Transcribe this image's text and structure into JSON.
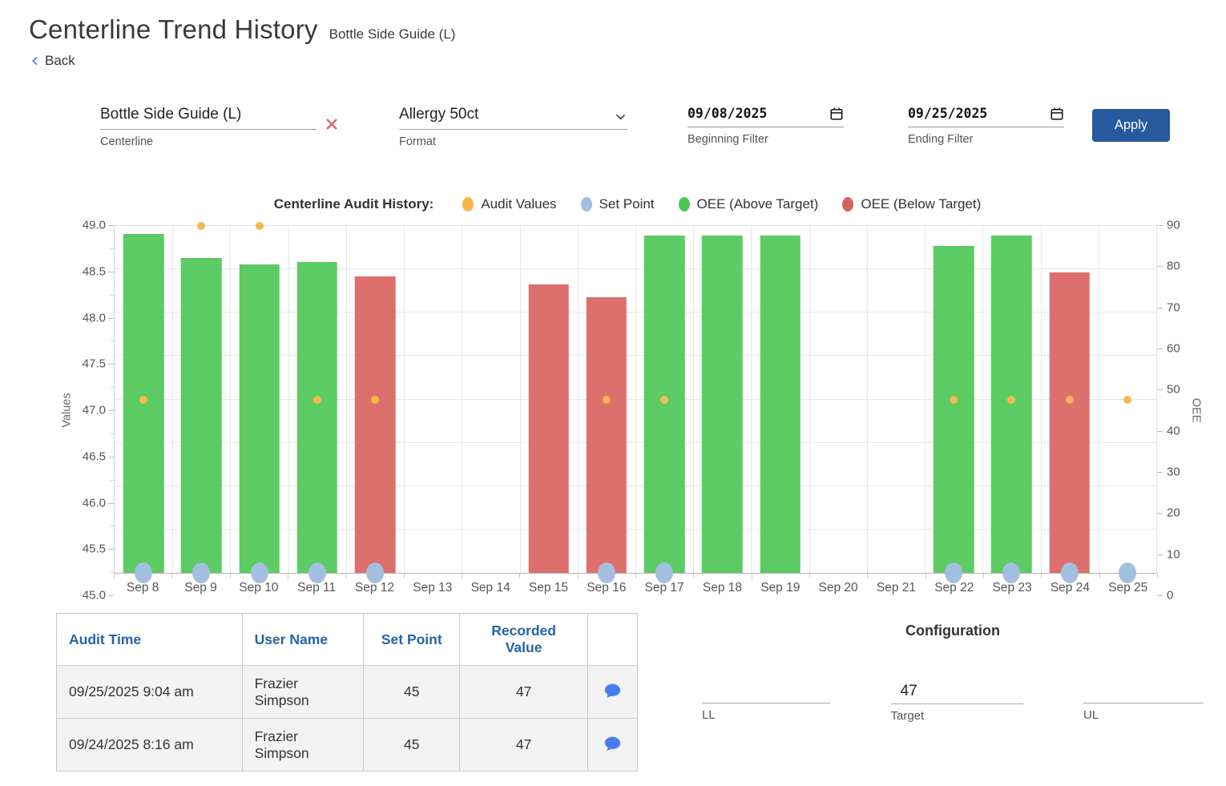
{
  "page": {
    "title": "Centerline Trend History",
    "subtitle": "Bottle Side Guide (L)",
    "back_label": "Back"
  },
  "filters": {
    "centerline": {
      "value": "Bottle Side Guide (L)",
      "label": "Centerline"
    },
    "format": {
      "value": "Allergy 50ct",
      "label": "Format"
    },
    "beginning": {
      "value": "09/08/2025",
      "label": "Beginning Filter"
    },
    "ending": {
      "value": "09/25/2025",
      "label": "Ending Filter"
    },
    "apply_label": "Apply"
  },
  "chart_data": {
    "type": "bar",
    "title": "Centerline Audit History:",
    "legend": {
      "title": "Centerline Audit History:",
      "items": [
        {
          "label": "Audit Values",
          "color": "#f7b84b"
        },
        {
          "label": "Set Point",
          "color": "#a3bfe0"
        },
        {
          "label": "OEE (Above Target)",
          "color": "#4ec658"
        },
        {
          "label": "OEE (Below Target)",
          "color": "#d9625f"
        }
      ]
    },
    "categories": [
      "Sep 8",
      "Sep 9",
      "Sep 10",
      "Sep 11",
      "Sep 12",
      "Sep 13",
      "Sep 14",
      "Sep 15",
      "Sep 16",
      "Sep 17",
      "Sep 18",
      "Sep 19",
      "Sep 20",
      "Sep 21",
      "Sep 22",
      "Sep 23",
      "Sep 24",
      "Sep 25"
    ],
    "series": [
      {
        "name": "OEE",
        "type": "bar",
        "axis": "right",
        "values": [
          88,
          81.7,
          80.1,
          80.6,
          77,
          null,
          null,
          74.9,
          71.6,
          87.5,
          87.5,
          87.5,
          null,
          null,
          84.8,
          87.5,
          77.9,
          null
        ],
        "status": [
          "above",
          "above",
          "above",
          "above",
          "below",
          null,
          null,
          "below",
          "below",
          "above",
          "above",
          "above",
          null,
          null,
          "above",
          "above",
          "below",
          null
        ]
      },
      {
        "name": "Audit Values",
        "type": "point",
        "axis": "left",
        "values": [
          47,
          49,
          49,
          47,
          47,
          null,
          null,
          null,
          47,
          47,
          null,
          null,
          null,
          null,
          47,
          47,
          47,
          47
        ]
      },
      {
        "name": "Set Point",
        "type": "point",
        "axis": "left",
        "values": [
          45,
          45,
          45,
          45,
          45,
          null,
          null,
          null,
          45,
          45,
          null,
          null,
          null,
          null,
          45,
          45,
          45,
          45
        ]
      }
    ],
    "left_axis": {
      "label": "Values",
      "min": 45,
      "max": 49,
      "ticks": [
        "49.0",
        "48.5",
        "48.0",
        "47.5",
        "47.0",
        "46.5",
        "46.0",
        "45.5",
        "45.0"
      ]
    },
    "right_axis": {
      "label": "OEE",
      "min": 0,
      "max": 90,
      "ticks": [
        "90",
        "80",
        "70",
        "60",
        "50",
        "40",
        "30",
        "20",
        "10",
        "0"
      ]
    },
    "colors": {
      "above": "#5dcb63",
      "below": "#dd6f6d",
      "audit": "#f7b84b",
      "set_point": "#a3bfe0"
    },
    "grid": true,
    "legend_position": "top"
  },
  "table": {
    "headers": [
      "Audit Time",
      "User Name",
      "Set Point",
      "Recorded Value",
      ""
    ],
    "rows": [
      {
        "audit_time": "09/25/2025 9:04 am",
        "user_name": "Frazier Simpson",
        "set_point": "45",
        "recorded_value": "47"
      },
      {
        "audit_time": "09/24/2025 8:16 am",
        "user_name": "Frazier Simpson",
        "set_point": "45",
        "recorded_value": "47"
      }
    ]
  },
  "configuration": {
    "title": "Configuration",
    "fields": [
      {
        "label": "LL",
        "value": ""
      },
      {
        "label": "Target",
        "value": "47"
      },
      {
        "label": "UL",
        "value": ""
      }
    ]
  }
}
